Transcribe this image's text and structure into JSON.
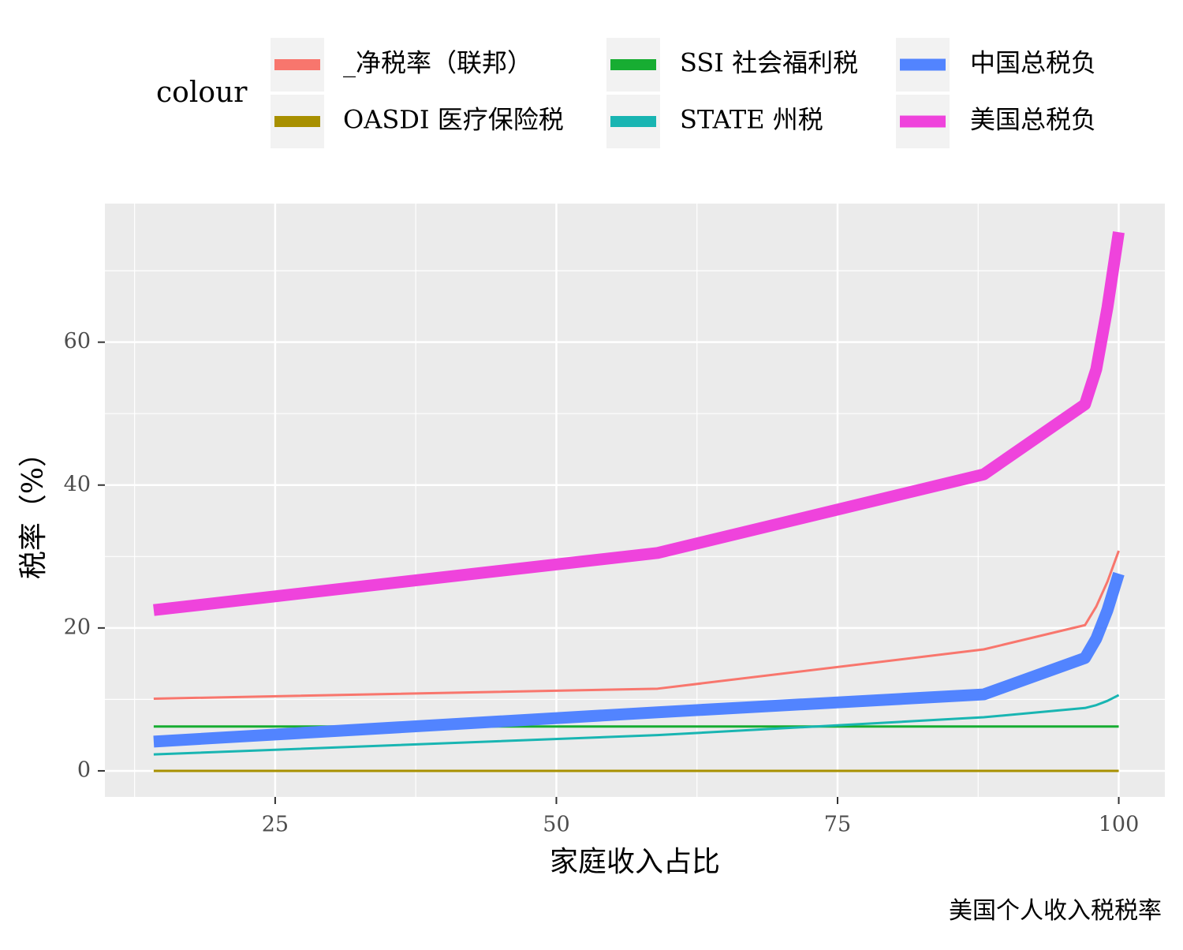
{
  "chart_data": {
    "type": "line",
    "legend_title": "colour",
    "caption": "美国个人收入税税率",
    "x_label": "家庭收入占比",
    "y_label": "税率（%）",
    "x": [
      14.2,
      59,
      88,
      97,
      98,
      99,
      100
    ],
    "series": [
      {
        "name": "_净税率（联邦）",
        "color": "#f8766d",
        "width": 3,
        "values": [
          10.1,
          11.5,
          17,
          20.4,
          23,
          26.5,
          30.8
        ]
      },
      {
        "name": "OASDI 医疗保险税",
        "color": "#a89000",
        "width": 3,
        "values": [
          0,
          0,
          0,
          0,
          0,
          0,
          0
        ]
      },
      {
        "name": "SSI 社会福利税",
        "color": "#17ad32",
        "width": 3,
        "values": [
          6.2,
          6.2,
          6.2,
          6.2,
          6.2,
          6.2,
          6.2
        ]
      },
      {
        "name": "STATE 州税",
        "color": "#19b5b2",
        "width": 3,
        "values": [
          2.3,
          5,
          7.5,
          8.8,
          9.2,
          9.8,
          10.6
        ]
      },
      {
        "name": "中国总税负",
        "color": "#5284ff",
        "width": 15,
        "values": [
          4.1,
          8.2,
          10.7,
          15.8,
          18.5,
          22.5,
          27.6
        ]
      },
      {
        "name": "美国总税负",
        "color": "#ef43dc",
        "width": 15,
        "values": [
          22.5,
          30.5,
          41.5,
          51.3,
          56.2,
          64.9,
          75.4
        ]
      }
    ],
    "xlim": [
      9.86,
      104.1
    ],
    "ylim": [
      -3.65,
      79.4
    ],
    "xticks": [
      25,
      50,
      75,
      100
    ],
    "yticks": [
      0,
      20,
      40,
      60
    ],
    "grid": true,
    "minor_grid": true
  }
}
